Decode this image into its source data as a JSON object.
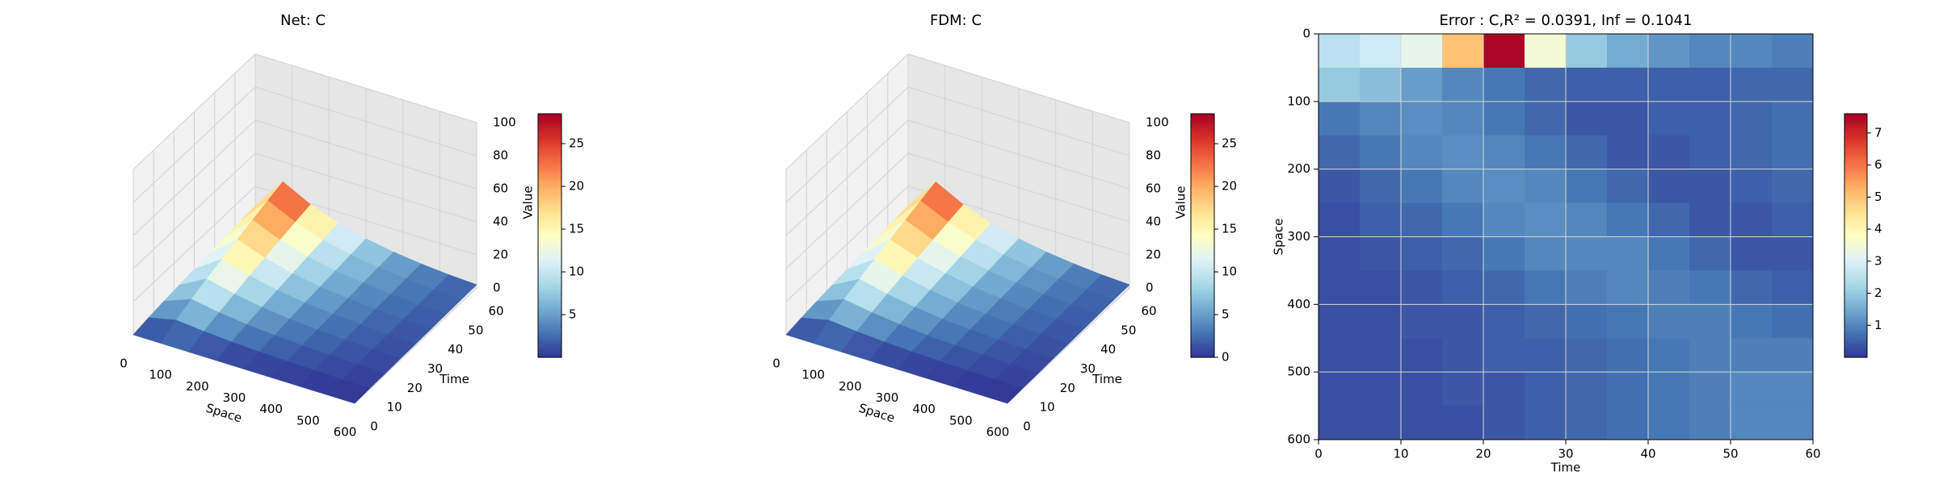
{
  "chart_data": [
    {
      "type": "surface3d",
      "title": "Net: C",
      "xlabel": "Space",
      "ylabel": "Time",
      "zlabel": "Value",
      "x": [
        0,
        75,
        150,
        225,
        300,
        375,
        450,
        525,
        600
      ],
      "y": [
        0,
        7.5,
        15,
        22.5,
        30,
        37.5,
        45,
        52.5,
        60
      ],
      "z": [
        [
          0,
          0,
          0,
          0,
          0,
          0,
          0,
          0,
          0
        ],
        [
          1.6,
          5.3,
          3.7,
          2.5,
          1.7,
          1.2,
          0.8,
          0.5,
          0.4
        ],
        [
          2.8,
          9.2,
          6.3,
          4.3,
          2.9,
          2.0,
          1.4,
          0.9,
          0.6
        ],
        [
          3.8,
          12.8,
          8.8,
          6.0,
          4.1,
          2.8,
          1.9,
          1.3,
          0.9
        ],
        [
          4.8,
          16.1,
          11.1,
          7.6,
          5.2,
          3.5,
          2.4,
          1.6,
          1.1
        ],
        [
          5.8,
          19.2,
          13.2,
          9.0,
          6.1,
          4.2,
          2.9,
          1.9,
          1.3
        ],
        [
          6.7,
          22.2,
          15.3,
          10.4,
          7.1,
          4.9,
          3.3,
          2.2,
          1.6
        ],
        [
          7.6,
          25.2,
          17.4,
          11.8,
          8.1,
          5.5,
          3.8,
          2.5,
          1.8
        ],
        [
          8.4,
          28.0,
          19.3,
          13.2,
          9.0,
          6.2,
          4.2,
          2.8,
          2.0
        ]
      ],
      "xlim": [
        0,
        600
      ],
      "xticks": [
        0,
        100,
        200,
        300,
        400,
        500,
        600
      ],
      "ylim": [
        0,
        60
      ],
      "yticks": [
        0,
        10,
        20,
        30,
        40,
        50,
        60
      ],
      "zlim": [
        0,
        100
      ],
      "zticks": [
        0,
        20,
        40,
        60,
        80,
        100
      ],
      "colormap": "RdYlBu_r",
      "clim": [
        0,
        28.5
      ],
      "cticks": [
        5,
        10,
        15,
        20,
        25
      ]
    },
    {
      "type": "surface3d",
      "title": "FDM: C",
      "xlabel": "Space",
      "ylabel": "Time",
      "zlabel": "Value",
      "x": [
        0,
        75,
        150,
        225,
        300,
        375,
        450,
        525,
        600
      ],
      "y": [
        0,
        7.5,
        15,
        22.5,
        30,
        37.5,
        45,
        52.5,
        60
      ],
      "z": [
        [
          0,
          0,
          0,
          0,
          0,
          0,
          0,
          0,
          0
        ],
        [
          1.5,
          5.2,
          3.6,
          2.5,
          1.7,
          1.2,
          0.8,
          0.5,
          0.4
        ],
        [
          2.7,
          9.1,
          6.3,
          4.3,
          2.9,
          2.0,
          1.4,
          0.9,
          0.6
        ],
        [
          3.7,
          12.7,
          8.8,
          6.0,
          4.1,
          2.8,
          1.9,
          1.3,
          0.9
        ],
        [
          4.7,
          16.0,
          11.1,
          7.6,
          5.2,
          3.5,
          2.4,
          1.6,
          1.1
        ],
        [
          5.7,
          19.1,
          13.2,
          9.0,
          6.1,
          4.2,
          2.9,
          1.9,
          1.3
        ],
        [
          6.6,
          22.1,
          15.3,
          10.4,
          7.1,
          4.9,
          3.3,
          2.2,
          1.6
        ],
        [
          7.5,
          25.1,
          17.4,
          11.8,
          8.1,
          5.5,
          3.8,
          2.5,
          1.8
        ],
        [
          8.3,
          27.9,
          19.3,
          13.2,
          9.0,
          6.2,
          4.2,
          2.8,
          2.0
        ]
      ],
      "xlim": [
        0,
        600
      ],
      "xticks": [
        0,
        100,
        200,
        300,
        400,
        500,
        600
      ],
      "ylim": [
        0,
        60
      ],
      "yticks": [
        0,
        10,
        20,
        30,
        40,
        50,
        60
      ],
      "zlim": [
        0,
        100
      ],
      "zticks": [
        0,
        20,
        40,
        60,
        80,
        100
      ],
      "colormap": "RdYlBu_r",
      "clim": [
        0,
        28.5
      ],
      "cticks": [
        0,
        5,
        10,
        15,
        20,
        25
      ]
    },
    {
      "type": "heatmap",
      "title": "Error : C,R² = 0.0391, Inf = 0.1041",
      "xlabel": "Time",
      "ylabel": "Space",
      "xbins": [
        0,
        5,
        10,
        15,
        20,
        25,
        30,
        35,
        40,
        45,
        50,
        55,
        60
      ],
      "ybins": [
        0,
        50,
        100,
        150,
        200,
        250,
        300,
        350,
        400,
        450,
        500,
        550,
        600
      ],
      "values": [
        [
          2.5,
          2.8,
          3.2,
          5.0,
          7.5,
          3.5,
          2.0,
          1.5,
          1.2,
          1.0,
          1.0,
          0.9
        ],
        [
          2.0,
          1.8,
          1.3,
          1.0,
          0.8,
          0.6,
          0.5,
          0.5,
          0.5,
          0.5,
          0.6,
          0.6
        ],
        [
          0.8,
          1.0,
          1.1,
          1.0,
          0.8,
          0.6,
          0.4,
          0.4,
          0.5,
          0.5,
          0.6,
          0.7
        ],
        [
          0.6,
          0.8,
          1.0,
          1.1,
          1.0,
          0.8,
          0.6,
          0.4,
          0.4,
          0.5,
          0.6,
          0.7
        ],
        [
          0.4,
          0.6,
          0.8,
          1.0,
          1.1,
          1.0,
          0.8,
          0.6,
          0.4,
          0.4,
          0.5,
          0.6
        ],
        [
          0.3,
          0.5,
          0.6,
          0.8,
          1.0,
          1.1,
          1.0,
          0.8,
          0.6,
          0.4,
          0.4,
          0.5
        ],
        [
          0.3,
          0.4,
          0.5,
          0.6,
          0.8,
          1.0,
          1.0,
          1.0,
          0.8,
          0.6,
          0.4,
          0.4
        ],
        [
          0.3,
          0.3,
          0.4,
          0.5,
          0.6,
          0.8,
          0.9,
          1.0,
          0.9,
          0.8,
          0.6,
          0.5
        ],
        [
          0.3,
          0.3,
          0.4,
          0.4,
          0.5,
          0.6,
          0.7,
          0.8,
          0.9,
          0.9,
          0.8,
          0.7
        ],
        [
          0.3,
          0.3,
          0.3,
          0.4,
          0.5,
          0.5,
          0.6,
          0.7,
          0.8,
          0.9,
          0.9,
          0.9
        ],
        [
          0.3,
          0.3,
          0.3,
          0.4,
          0.4,
          0.5,
          0.6,
          0.7,
          0.8,
          0.9,
          1.0,
          1.0
        ],
        [
          0.3,
          0.3,
          0.3,
          0.3,
          0.4,
          0.5,
          0.6,
          0.7,
          0.8,
          0.9,
          1.0,
          1.0
        ]
      ],
      "xlim": [
        0,
        60
      ],
      "xticks": [
        0,
        10,
        20,
        30,
        40,
        50,
        60
      ],
      "ylim": [
        600,
        0
      ],
      "yticks": [
        0,
        100,
        200,
        300,
        400,
        500,
        600
      ],
      "grid": true,
      "colormap": "RdYlBu_r",
      "clim": [
        0,
        7.6
      ],
      "cticks": [
        1,
        2,
        3,
        4,
        5,
        6,
        7
      ]
    }
  ]
}
